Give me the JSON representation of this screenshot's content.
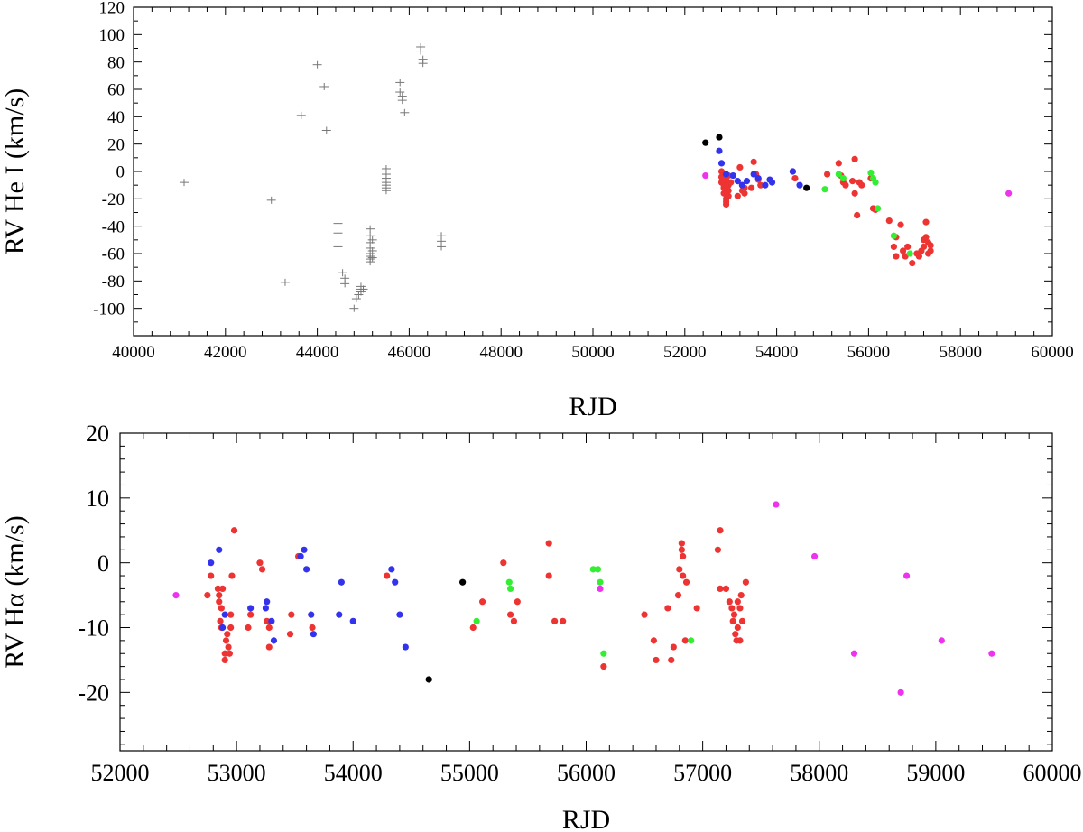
{
  "chart_data": [
    {
      "type": "scatter",
      "xlabel": "RJD",
      "ylabel": "RV He I (km/s)",
      "xlim": [
        40000,
        60000
      ],
      "ylim": [
        -120,
        120
      ],
      "xticks": [
        40000,
        42000,
        44000,
        46000,
        48000,
        50000,
        52000,
        54000,
        56000,
        58000,
        60000
      ],
      "yticks": [
        -100,
        -80,
        -60,
        -40,
        -20,
        0,
        20,
        40,
        60,
        80,
        100,
        120
      ],
      "series": [
        {
          "name": "historical",
          "marker": "cross",
          "color": "#777777",
          "points": [
            [
              41100,
              -8
            ],
            [
              43000,
              -21
            ],
            [
              43300,
              -81
            ],
            [
              43650,
              41
            ],
            [
              44000,
              78
            ],
            [
              44150,
              62
            ],
            [
              44200,
              30
            ],
            [
              44450,
              -38
            ],
            [
              44450,
              -45
            ],
            [
              44450,
              -55
            ],
            [
              44550,
              -74
            ],
            [
              44600,
              -78
            ],
            [
              44600,
              -82
            ],
            [
              44800,
              -100
            ],
            [
              44850,
              -93
            ],
            [
              44900,
              -90
            ],
            [
              44950,
              -88
            ],
            [
              44950,
              -86
            ],
            [
              44950,
              -84
            ],
            [
              45000,
              -86
            ],
            [
              45150,
              -42
            ],
            [
              45150,
              -47
            ],
            [
              45150,
              -52
            ],
            [
              45150,
              -56
            ],
            [
              45150,
              -60
            ],
            [
              45150,
              -62
            ],
            [
              45150,
              -64
            ],
            [
              45150,
              -66
            ],
            [
              45200,
              -50
            ],
            [
              45200,
              -58
            ],
            [
              45200,
              -63
            ],
            [
              45500,
              2
            ],
            [
              45500,
              -2
            ],
            [
              45500,
              -5
            ],
            [
              45500,
              -8
            ],
            [
              45500,
              -10
            ],
            [
              45500,
              -12
            ],
            [
              45500,
              -14
            ],
            [
              45800,
              65
            ],
            [
              45800,
              58
            ],
            [
              45850,
              55
            ],
            [
              45850,
              52
            ],
            [
              45900,
              43
            ],
            [
              46250,
              91
            ],
            [
              46250,
              88
            ],
            [
              46300,
              82
            ],
            [
              46300,
              79
            ],
            [
              46700,
              -47
            ],
            [
              46700,
              -51
            ],
            [
              46700,
              -55
            ]
          ]
        },
        {
          "name": "red",
          "color": "#ee3333",
          "points": [
            [
              52800,
              0
            ],
            [
              52800,
              -4
            ],
            [
              52800,
              -8
            ],
            [
              52850,
              -12
            ],
            [
              52850,
              -16
            ],
            [
              52850,
              -10
            ],
            [
              52900,
              -20
            ],
            [
              52900,
              -24
            ],
            [
              52900,
              -22
            ],
            [
              52950,
              -18
            ],
            [
              52950,
              -14
            ],
            [
              52950,
              -10
            ],
            [
              53000,
              -8
            ],
            [
              52900,
              -6
            ],
            [
              52950,
              -3
            ],
            [
              53200,
              3
            ],
            [
              53250,
              -10
            ],
            [
              53250,
              -14
            ],
            [
              53300,
              -16
            ],
            [
              53150,
              -18
            ],
            [
              53300,
              -12
            ],
            [
              53450,
              -12
            ],
            [
              53500,
              7
            ],
            [
              53550,
              -2
            ],
            [
              53600,
              -6
            ],
            [
              53650,
              -10
            ],
            [
              54350,
              0
            ],
            [
              54400,
              -5
            ],
            [
              55100,
              -2
            ],
            [
              55350,
              6
            ],
            [
              55400,
              -3
            ],
            [
              55450,
              -8
            ],
            [
              55500,
              -10
            ],
            [
              55700,
              9
            ],
            [
              55650,
              -7
            ],
            [
              55700,
              -16
            ],
            [
              55750,
              -32
            ],
            [
              55800,
              -8
            ],
            [
              55850,
              -10
            ],
            [
              56050,
              -5
            ],
            [
              56100,
              -27
            ],
            [
              56150,
              -28
            ],
            [
              56450,
              -36
            ],
            [
              56550,
              -55
            ],
            [
              56600,
              -62
            ],
            [
              56600,
              -48
            ],
            [
              56700,
              -39
            ],
            [
              56750,
              -58
            ],
            [
              56800,
              -62
            ],
            [
              56850,
              -55
            ],
            [
              56950,
              -67
            ],
            [
              57050,
              -60
            ],
            [
              57100,
              -62
            ],
            [
              57150,
              -58
            ],
            [
              57200,
              -55
            ],
            [
              57200,
              -50
            ],
            [
              57250,
              -37
            ],
            [
              57250,
              -48
            ],
            [
              57300,
              -52
            ],
            [
              57350,
              -58
            ],
            [
              57300,
              -60
            ],
            [
              57350,
              -54
            ]
          ]
        },
        {
          "name": "blue",
          "color": "#3333ee",
          "points": [
            [
              52750,
              15
            ],
            [
              52800,
              6
            ],
            [
              52900,
              -2
            ],
            [
              53050,
              -3
            ],
            [
              53150,
              -7
            ],
            [
              53250,
              -10
            ],
            [
              53350,
              -7
            ],
            [
              53500,
              -2
            ],
            [
              53600,
              -5
            ],
            [
              53750,
              -10
            ],
            [
              53850,
              -6
            ],
            [
              53900,
              -8
            ],
            [
              54350,
              0
            ],
            [
              54500,
              -10
            ]
          ]
        },
        {
          "name": "green",
          "color": "#33ee33",
          "points": [
            [
              55050,
              -13
            ],
            [
              55350,
              -2
            ],
            [
              55450,
              -5
            ],
            [
              56050,
              -1
            ],
            [
              56100,
              -5
            ],
            [
              56150,
              -8
            ],
            [
              56200,
              -27
            ],
            [
              56550,
              -47
            ],
            [
              56900,
              -60
            ]
          ]
        },
        {
          "name": "black",
          "color": "#000000",
          "points": [
            [
              52450,
              21
            ],
            [
              52750,
              25
            ],
            [
              54650,
              -12
            ]
          ]
        },
        {
          "name": "magenta",
          "color": "#ee33ee",
          "points": [
            [
              52450,
              -3
            ],
            [
              59050,
              -16
            ]
          ]
        }
      ]
    },
    {
      "type": "scatter",
      "xlabel": "RJD",
      "ylabel": "RV Hα (km/s)",
      "xlim": [
        52000,
        60000
      ],
      "ylim": [
        -29,
        20
      ],
      "xticks": [
        52000,
        53000,
        54000,
        55000,
        56000,
        57000,
        58000,
        59000,
        60000
      ],
      "yticks": [
        -20,
        -10,
        0,
        10,
        20
      ],
      "series": [
        {
          "name": "red",
          "color": "#ee3333",
          "points": [
            [
              52750,
              -5
            ],
            [
              52780,
              -2
            ],
            [
              52840,
              -4
            ],
            [
              52850,
              -6
            ],
            [
              52850,
              -5
            ],
            [
              52860,
              -9
            ],
            [
              52870,
              -10
            ],
            [
              52870,
              -7
            ],
            [
              52880,
              -4
            ],
            [
              52900,
              -14
            ],
            [
              52900,
              -15
            ],
            [
              52910,
              -12
            ],
            [
              52920,
              -11
            ],
            [
              52930,
              -13
            ],
            [
              52940,
              -14
            ],
            [
              52950,
              -8
            ],
            [
              52960,
              -2
            ],
            [
              52950,
              -10
            ],
            [
              52980,
              5
            ],
            [
              53100,
              -10
            ],
            [
              53120,
              -8
            ],
            [
              53200,
              0
            ],
            [
              53220,
              -1
            ],
            [
              53260,
              -9
            ],
            [
              53280,
              -10
            ],
            [
              53280,
              -13
            ],
            [
              53460,
              -11
            ],
            [
              53470,
              -8
            ],
            [
              53530,
              1
            ],
            [
              53650,
              -10
            ],
            [
              54290,
              -2
            ],
            [
              55030,
              -10
            ],
            [
              55110,
              -6
            ],
            [
              55290,
              0
            ],
            [
              55350,
              -8
            ],
            [
              55380,
              -9
            ],
            [
              55410,
              -6
            ],
            [
              55680,
              -2
            ],
            [
              55680,
              3
            ],
            [
              55730,
              -9
            ],
            [
              55800,
              -9
            ],
            [
              56150,
              -16
            ],
            [
              56500,
              -8
            ],
            [
              56580,
              -12
            ],
            [
              56600,
              -15
            ],
            [
              56700,
              -7
            ],
            [
              56730,
              -15
            ],
            [
              56750,
              -13
            ],
            [
              56790,
              -5
            ],
            [
              56800,
              -1
            ],
            [
              56820,
              3
            ],
            [
              56820,
              2
            ],
            [
              56830,
              1
            ],
            [
              56830,
              -2
            ],
            [
              56850,
              -12
            ],
            [
              56860,
              -3
            ],
            [
              56950,
              -7
            ],
            [
              57130,
              2
            ],
            [
              57150,
              5
            ],
            [
              57150,
              -4
            ],
            [
              57200,
              -4
            ],
            [
              57230,
              -6
            ],
            [
              57250,
              -7
            ],
            [
              57260,
              -9
            ],
            [
              57270,
              -8
            ],
            [
              57280,
              -11
            ],
            [
              57290,
              -12
            ],
            [
              57300,
              -10
            ],
            [
              57300,
              -6
            ],
            [
              57320,
              -12
            ],
            [
              57320,
              -7
            ],
            [
              57330,
              -5
            ],
            [
              57340,
              -9
            ],
            [
              57370,
              -3
            ]
          ]
        },
        {
          "name": "blue",
          "color": "#3333ee",
          "points": [
            [
              52780,
              0
            ],
            [
              52850,
              2
            ],
            [
              52880,
              -10
            ],
            [
              52900,
              -8
            ],
            [
              53120,
              -7
            ],
            [
              53250,
              -7
            ],
            [
              53260,
              -6
            ],
            [
              53300,
              -9
            ],
            [
              53320,
              -12
            ],
            [
              53550,
              1
            ],
            [
              53580,
              2
            ],
            [
              53600,
              -1
            ],
            [
              53640,
              -8
            ],
            [
              53660,
              -11
            ],
            [
              53880,
              -8
            ],
            [
              53900,
              -3
            ],
            [
              54000,
              -9
            ],
            [
              54330,
              -1
            ],
            [
              54360,
              -3
            ],
            [
              54400,
              -8
            ],
            [
              54450,
              -13
            ]
          ]
        },
        {
          "name": "green",
          "color": "#33ee33",
          "points": [
            [
              55060,
              -9
            ],
            [
              55340,
              -3
            ],
            [
              55350,
              -4
            ],
            [
              56060,
              -1
            ],
            [
              56100,
              -1
            ],
            [
              56120,
              -3
            ],
            [
              56150,
              -14
            ],
            [
              56900,
              -12
            ]
          ]
        },
        {
          "name": "black",
          "color": "#000000",
          "points": [
            [
              54650,
              -18
            ],
            [
              54940,
              -3
            ]
          ]
        },
        {
          "name": "magenta",
          "color": "#ee33ee",
          "points": [
            [
              52480,
              -5
            ],
            [
              56120,
              -4
            ],
            [
              57630,
              9
            ],
            [
              57960,
              1
            ],
            [
              58300,
              -14
            ],
            [
              58700,
              -20
            ],
            [
              58750,
              -2
            ],
            [
              59050,
              -12
            ],
            [
              59480,
              -14
            ]
          ]
        }
      ]
    }
  ]
}
